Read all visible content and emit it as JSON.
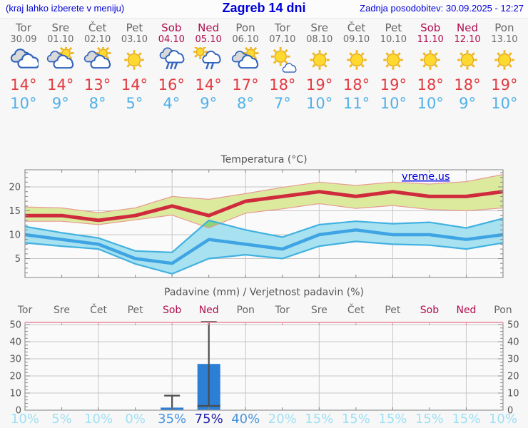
{
  "header": {
    "left_hint": "(kraj lahko izberete v meniju)",
    "title": "Zagreb 14 dni",
    "updated": "Zadnja posodobitev: 30.09.2025 - 12:27"
  },
  "colors": {
    "link_blue": "#0000d8",
    "weekday_text": "#666666",
    "weekend_text": "#b00d4f",
    "temp_high": "#e23b41",
    "temp_low": "#4fb0e8",
    "chart_text": "#555555",
    "grid": "#c6c6c6",
    "frame": "#999999",
    "band_max_fill": "#dcea9e",
    "band_max_edge": "#e89b94",
    "band_min_fill": "#a8e2f0",
    "band_min_edge": "#41b1e1",
    "band_overlap": "#8bd478",
    "line_max": "#cf2b3d",
    "line_min": "#3ea4e3",
    "bar_fill": "#2b7fd4",
    "whisker": "#4d4d4d",
    "prob_low": "#9fe0f4",
    "prob_mid": "#4a94dc",
    "prob_high": "#2121aa",
    "precip_top_axis": "#e8889c"
  },
  "forecast": {
    "days": [
      {
        "name": "Tor",
        "date": "30.09",
        "weekend": false,
        "icon": "cloudy",
        "high": "14°",
        "low": "10°"
      },
      {
        "name": "Sre",
        "date": "01.10",
        "weekend": false,
        "icon": "sun-cloud",
        "high": "14°",
        "low": "9°"
      },
      {
        "name": "Čet",
        "date": "02.10",
        "weekend": false,
        "icon": "sun-cloud",
        "high": "13°",
        "low": "8°"
      },
      {
        "name": "Pet",
        "date": "03.10",
        "weekend": false,
        "icon": "sunny",
        "high": "14°",
        "low": "5°"
      },
      {
        "name": "Sob",
        "date": "04.10",
        "weekend": true,
        "icon": "rain",
        "high": "16°",
        "low": "4°"
      },
      {
        "name": "Ned",
        "date": "05.10",
        "weekend": true,
        "icon": "sun-rain",
        "high": "14°",
        "low": "9°"
      },
      {
        "name": "Pon",
        "date": "06.10",
        "weekend": false,
        "icon": "sun-cloud",
        "high": "17°",
        "low": "8°"
      },
      {
        "name": "Tor",
        "date": "07.10",
        "weekend": false,
        "icon": "sun-small-cloud",
        "high": "18°",
        "low": "7°"
      },
      {
        "name": "Sre",
        "date": "08.10",
        "weekend": false,
        "icon": "sunny",
        "high": "19°",
        "low": "10°"
      },
      {
        "name": "Čet",
        "date": "09.10",
        "weekend": false,
        "icon": "sunny",
        "high": "18°",
        "low": "11°"
      },
      {
        "name": "Pet",
        "date": "10.10",
        "weekend": false,
        "icon": "sunny",
        "high": "19°",
        "low": "10°"
      },
      {
        "name": "Sob",
        "date": "11.10",
        "weekend": true,
        "icon": "sunny",
        "high": "18°",
        "low": "10°"
      },
      {
        "name": "Ned",
        "date": "12.10",
        "weekend": true,
        "icon": "sunny",
        "high": "18°",
        "low": "9°"
      },
      {
        "name": "Pon",
        "date": "13.10",
        "weekend": false,
        "icon": "sunny",
        "high": "19°",
        "low": "10°"
      }
    ]
  },
  "chart_data": [
    {
      "type": "line",
      "title": "Temperatura (°C)",
      "watermark": "vreme.us",
      "x_categories": [
        "Tor",
        "Sre",
        "Čet",
        "Pet",
        "Sob",
        "Ned",
        "Pon",
        "Tor",
        "Sre",
        "Čet",
        "Pet",
        "Sob",
        "Ned",
        "Pon"
      ],
      "ylim": [
        1,
        23.5
      ],
      "yticks": [
        5,
        10,
        15,
        20
      ],
      "grid": true,
      "series": [
        {
          "name": "max_temp",
          "values": [
            14,
            14,
            13,
            14,
            16,
            14,
            17,
            18,
            19,
            18,
            19,
            18,
            18,
            19
          ]
        },
        {
          "name": "max_range_upper",
          "values": [
            15.8,
            15.6,
            14.6,
            15.6,
            18.0,
            17.4,
            18.6,
            19.9,
            21.0,
            20.3,
            21.0,
            20.6,
            21.1,
            22.6
          ]
        },
        {
          "name": "max_range_lower",
          "values": [
            12.8,
            12.8,
            12.1,
            13.1,
            14.1,
            11.4,
            14.5,
            15.4,
            16.5,
            15.5,
            16.1,
            15.3,
            15.0,
            15.6
          ]
        },
        {
          "name": "min_temp",
          "values": [
            10,
            9,
            8,
            5,
            4,
            9,
            8,
            7,
            10,
            11,
            10,
            10,
            9,
            10
          ]
        },
        {
          "name": "min_range_upper",
          "values": [
            11.7,
            10.4,
            9.3,
            6.6,
            6.3,
            13.0,
            11.0,
            9.5,
            12.1,
            12.8,
            12.3,
            12.6,
            11.4,
            13.4
          ]
        },
        {
          "name": "min_range_lower",
          "values": [
            8.3,
            7.6,
            7.0,
            3.9,
            1.8,
            5.0,
            5.8,
            5.0,
            7.6,
            8.6,
            8.0,
            7.8,
            7.0,
            8.3
          ]
        }
      ]
    },
    {
      "type": "bar",
      "title": "Padavine (mm) / Verjetnost padavin (%)",
      "categories": [
        "Tor",
        "Sre",
        "Čet",
        "Pet",
        "Sob",
        "Ned",
        "Pon",
        "Tor",
        "Sre",
        "Čet",
        "Pet",
        "Sob",
        "Ned",
        "Pon"
      ],
      "weekend_mask": [
        false,
        false,
        false,
        false,
        true,
        true,
        false,
        false,
        false,
        false,
        false,
        true,
        true,
        false
      ],
      "ylim": [
        0,
        52
      ],
      "yticks": [
        0,
        10,
        20,
        30,
        40,
        50
      ],
      "values": [
        0,
        0,
        0,
        0,
        1.5,
        27,
        0,
        0,
        0,
        0,
        0,
        0,
        0,
        0
      ],
      "whiskers": [
        {
          "day": 4,
          "lo": 0,
          "hi": 8.5,
          "cap_lo": false
        },
        {
          "day": 5,
          "lo": 2.5,
          "hi": 51.5,
          "cap_lo": true
        }
      ],
      "probabilities": [
        "10%",
        "5%",
        "10%",
        "0%",
        "35%",
        "75%",
        "40%",
        "20%",
        "15%",
        "15%",
        "15%",
        "15%",
        "15%",
        "10%"
      ],
      "prob_levels": [
        "low",
        "low",
        "low",
        "low",
        "mid",
        "high",
        "mid",
        "low",
        "low",
        "low",
        "low",
        "low",
        "low",
        "low"
      ]
    }
  ]
}
